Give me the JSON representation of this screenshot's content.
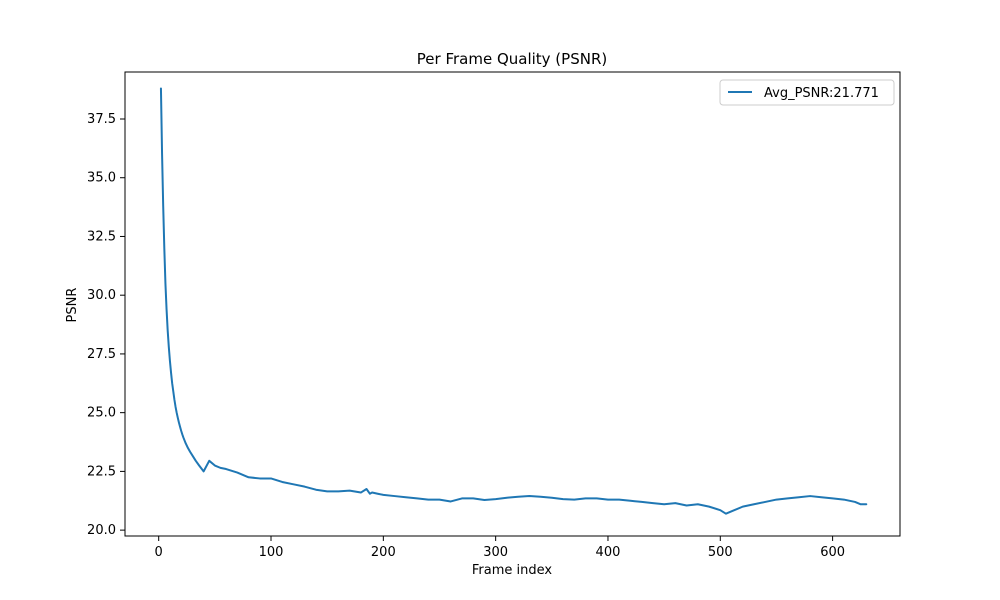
{
  "chart_data": {
    "type": "line",
    "title": "Per Frame Quality (PSNR)",
    "xlabel": "Frame index",
    "ylabel": "PSNR",
    "xlim": [
      -30,
      660
    ],
    "ylim": [
      19.75,
      39.5
    ],
    "xticks": [
      0,
      100,
      200,
      300,
      400,
      500,
      600
    ],
    "xtick_labels": [
      "0",
      "100",
      "200",
      "300",
      "400",
      "500",
      "600"
    ],
    "yticks": [
      20.0,
      22.5,
      25.0,
      27.5,
      30.0,
      32.5,
      35.0,
      37.5
    ],
    "ytick_labels": [
      "20.0",
      "22.5",
      "25.0",
      "27.5",
      "30.0",
      "32.5",
      "35.0",
      "37.5"
    ],
    "grid": false,
    "legend_position": "top-right",
    "series": [
      {
        "name": "Avg_PSNR:21.771",
        "color": "#1f77b4",
        "x": [
          2,
          3,
          4,
          5,
          6,
          7,
          8,
          9,
          10,
          11,
          12,
          13,
          14,
          15,
          16,
          17,
          18,
          19,
          20,
          21,
          22,
          24,
          26,
          28,
          30,
          33,
          36,
          40,
          45,
          50,
          55,
          60,
          70,
          80,
          90,
          100,
          110,
          120,
          130,
          140,
          150,
          160,
          170,
          180,
          185,
          188,
          190,
          195,
          200,
          210,
          220,
          230,
          240,
          250,
          260,
          270,
          280,
          290,
          300,
          310,
          320,
          330,
          340,
          350,
          360,
          370,
          380,
          390,
          400,
          410,
          420,
          430,
          440,
          450,
          460,
          470,
          480,
          490,
          500,
          505,
          510,
          520,
          530,
          540,
          550,
          560,
          570,
          580,
          590,
          600,
          610,
          620,
          625,
          630
        ],
        "y": [
          38.8,
          36.0,
          33.8,
          32.0,
          30.5,
          29.4,
          28.5,
          27.8,
          27.2,
          26.7,
          26.25,
          25.9,
          25.55,
          25.25,
          25.0,
          24.78,
          24.58,
          24.4,
          24.23,
          24.08,
          23.94,
          23.7,
          23.5,
          23.33,
          23.18,
          22.95,
          22.75,
          22.5,
          22.95,
          22.75,
          22.65,
          22.6,
          22.45,
          22.25,
          22.2,
          22.2,
          22.05,
          21.95,
          21.85,
          21.72,
          21.65,
          21.65,
          21.68,
          21.6,
          21.75,
          21.55,
          21.6,
          21.55,
          21.5,
          21.45,
          21.4,
          21.35,
          21.3,
          21.3,
          21.22,
          21.35,
          21.35,
          21.28,
          21.32,
          21.38,
          21.42,
          21.45,
          21.42,
          21.38,
          21.32,
          21.3,
          21.35,
          21.35,
          21.3,
          21.3,
          21.25,
          21.2,
          21.15,
          21.1,
          21.15,
          21.05,
          21.1,
          21.0,
          20.85,
          20.7,
          20.8,
          21.0,
          21.1,
          21.2,
          21.3,
          21.35,
          21.4,
          21.45,
          21.4,
          21.35,
          21.3,
          21.2,
          21.1,
          21.1
        ]
      }
    ]
  }
}
